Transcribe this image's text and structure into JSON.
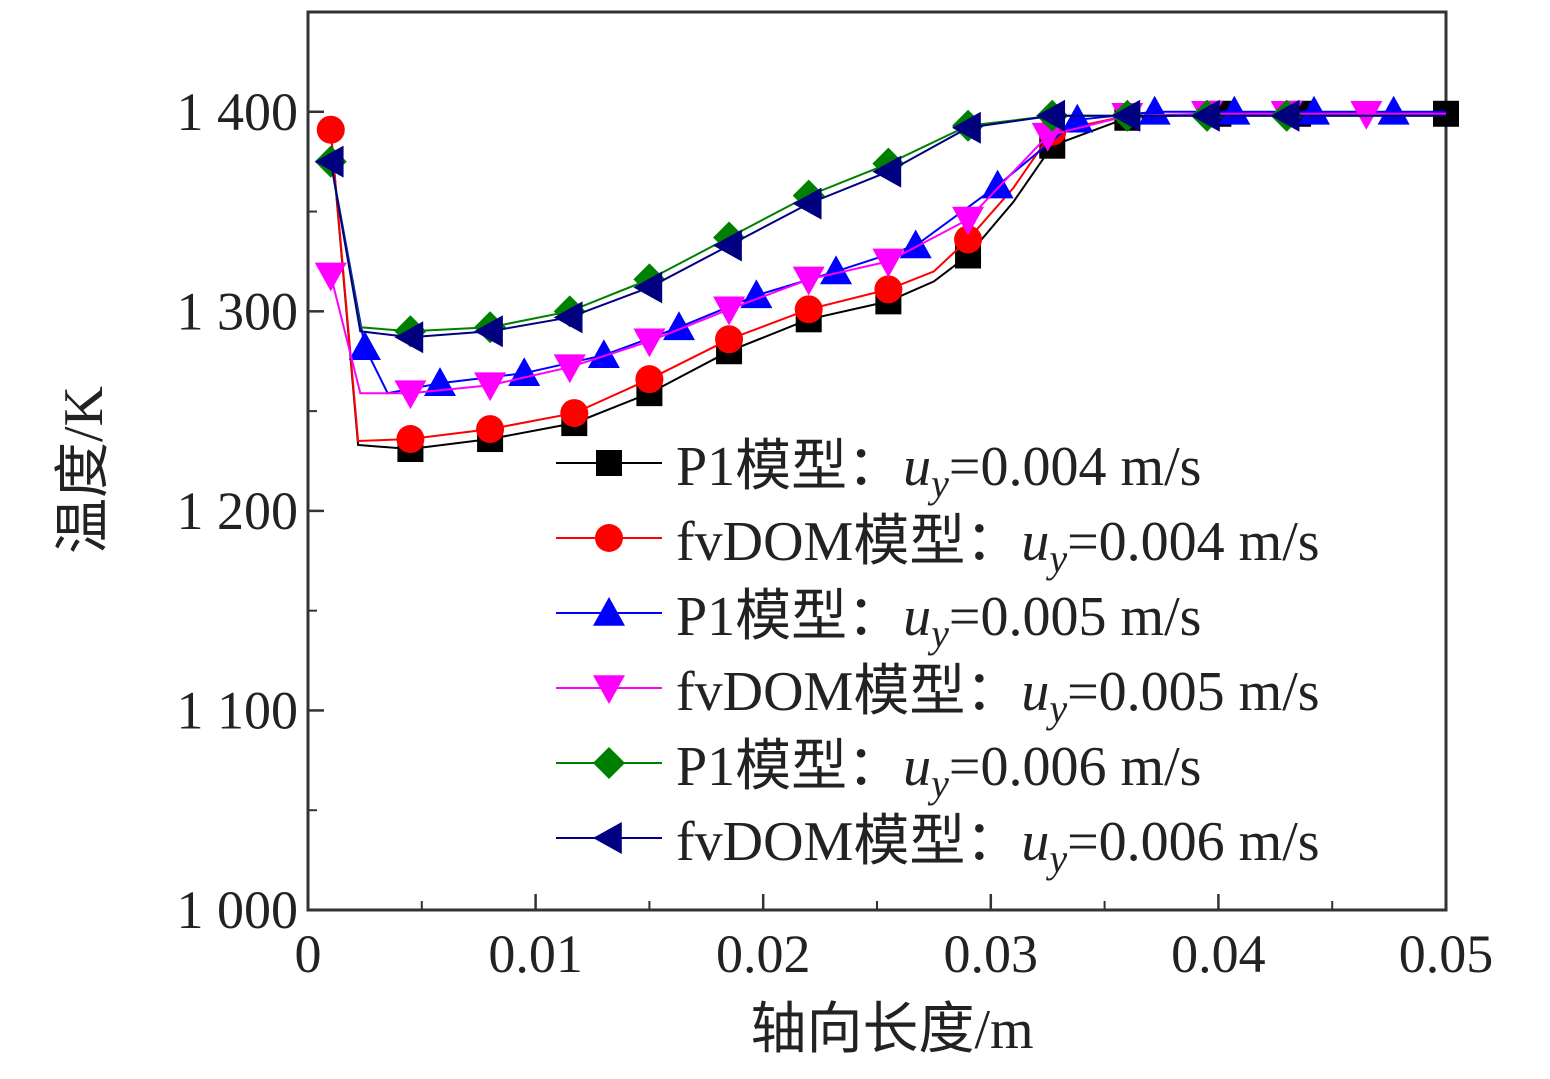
{
  "chart_data": {
    "type": "line",
    "xlabel": "轴向长度/m",
    "ylabel": "温度/K",
    "xlim": [
      0,
      0.05
    ],
    "ylim": [
      1000,
      1450
    ],
    "x_ticks": [
      0,
      0.01,
      0.02,
      0.03,
      0.04,
      0.05
    ],
    "x_tick_labels": [
      "0",
      "0.01",
      "0.02",
      "0.03",
      "0.04",
      "0.05"
    ],
    "y_ticks": [
      1000,
      1100,
      1200,
      1300,
      1400
    ],
    "y_tick_labels": [
      "1 000",
      "1 100",
      "1 200",
      "1 300",
      "1 400"
    ],
    "grid": false,
    "legend_position": "lower-right",
    "series": [
      {
        "name": "P1模型：uy=0.004 m/s",
        "legend_model": "P1模型",
        "legend_sep": "：",
        "legend_u": "u",
        "legend_sub": "y",
        "legend_value": "=0.004 m/s",
        "color": "#000000",
        "marker": "square",
        "line_x": [
          0.001,
          0.0022,
          0.0045,
          0.008,
          0.0117,
          0.015,
          0.0185,
          0.022,
          0.0255,
          0.0275,
          0.029,
          0.031,
          0.0327,
          0.036,
          0.04,
          0.0435,
          0.05
        ],
        "line_y": [
          1390,
          1233,
          1231,
          1236,
          1244,
          1259,
          1280,
          1296,
          1305,
          1315,
          1328,
          1355,
          1383,
          1397,
          1399,
          1399,
          1399
        ],
        "marker_x": [
          0.0045,
          0.008,
          0.0117,
          0.015,
          0.0185,
          0.022,
          0.0255,
          0.029,
          0.0327,
          0.036,
          0.04,
          0.0435,
          0.05
        ],
        "marker_y": [
          1231,
          1236,
          1244,
          1259,
          1280,
          1296,
          1305,
          1328,
          1383,
          1397,
          1399,
          1399,
          1399
        ]
      },
      {
        "name": "fvDOM模型：uy=0.004 m/s",
        "legend_model": "fvDOM模型",
        "legend_sep": "：",
        "legend_u": "u",
        "legend_sub": "y",
        "legend_value": "=0.004 m/s",
        "color": "#ff0000",
        "marker": "circle",
        "line_x": [
          0.001,
          0.0022,
          0.0045,
          0.008,
          0.0117,
          0.015,
          0.0185,
          0.022,
          0.0255,
          0.0275,
          0.029,
          0.031,
          0.0327,
          0.036,
          0.04,
          0.0435,
          0.05
        ],
        "line_y": [
          1391,
          1235,
          1236,
          1241,
          1249,
          1266,
          1286,
          1301,
          1311,
          1320,
          1336,
          1362,
          1390,
          1398,
          1399,
          1399,
          1399
        ],
        "marker_x": [
          0.001,
          0.0045,
          0.008,
          0.0117,
          0.015,
          0.0185,
          0.022,
          0.0255,
          0.029,
          0.0327
        ],
        "marker_y": [
          1391,
          1236,
          1241,
          1249,
          1266,
          1286,
          1301,
          1311,
          1336,
          1390
        ]
      },
      {
        "name": "P1模型：uy=0.005 m/s",
        "legend_model": "P1模型",
        "legend_sep": "：",
        "legend_u": "u",
        "legend_sub": "y",
        "legend_value": "=0.005 m/s",
        "color": "#0000ff",
        "marker": "triangle-up",
        "line_x": [
          0.001,
          0.0025,
          0.0035,
          0.0058,
          0.0095,
          0.013,
          0.0163,
          0.0197,
          0.0232,
          0.0267,
          0.0303,
          0.0338,
          0.0372,
          0.0407,
          0.0442,
          0.0477,
          0.05
        ],
        "line_y": [
          1375,
          1282,
          1259,
          1264,
          1269,
          1278,
          1292,
          1308,
          1320,
          1333,
          1363,
          1396,
          1400,
          1400,
          1400,
          1400,
          1400
        ],
        "marker_x": [
          0.0025,
          0.0058,
          0.0095,
          0.013,
          0.0163,
          0.0197,
          0.0232,
          0.0267,
          0.0303,
          0.0338,
          0.0372,
          0.0407,
          0.0442,
          0.0477
        ],
        "marker_y": [
          1282,
          1264,
          1269,
          1278,
          1292,
          1308,
          1320,
          1333,
          1363,
          1396,
          1400,
          1400,
          1400,
          1400
        ]
      },
      {
        "name": "fvDOM模型：uy=0.005 m/s",
        "legend_model": "fvDOM模型",
        "legend_sep": "：",
        "legend_u": "u",
        "legend_sub": "y",
        "legend_value": "=0.005 m/s",
        "color": "#ff00ff",
        "marker": "triangle-down",
        "line_x": [
          0.001,
          0.0023,
          0.0045,
          0.008,
          0.0115,
          0.015,
          0.0185,
          0.022,
          0.0255,
          0.029,
          0.0325,
          0.036,
          0.0395,
          0.043,
          0.0465,
          0.05
        ],
        "line_y": [
          1318,
          1259,
          1259,
          1263,
          1272,
          1285,
          1301,
          1316,
          1325,
          1346,
          1388,
          1398,
          1399,
          1399,
          1399,
          1399
        ],
        "marker_x": [
          0.001,
          0.0045,
          0.008,
          0.0115,
          0.015,
          0.0185,
          0.022,
          0.0255,
          0.029,
          0.0325,
          0.036,
          0.0395,
          0.043,
          0.0465
        ],
        "marker_y": [
          1318,
          1259,
          1263,
          1272,
          1285,
          1301,
          1316,
          1325,
          1346,
          1388,
          1398,
          1399,
          1399,
          1399
        ]
      },
      {
        "name": "P1模型：uy=0.006 m/s",
        "legend_model": "P1模型",
        "legend_sep": "：",
        "legend_u": "u",
        "legend_sub": "y",
        "legend_value": "=0.006 m/s",
        "color": "#008000",
        "marker": "diamond",
        "line_x": [
          0.001,
          0.0023,
          0.0045,
          0.008,
          0.0115,
          0.015,
          0.0185,
          0.022,
          0.0255,
          0.029,
          0.0327,
          0.036,
          0.0395,
          0.043,
          0.0465,
          0.05
        ],
        "line_y": [
          1375,
          1292,
          1290,
          1292,
          1300,
          1316,
          1337,
          1358,
          1374,
          1393,
          1398,
          1398,
          1398,
          1398,
          1398,
          1398
        ],
        "marker_x": [
          0.001,
          0.0045,
          0.008,
          0.0115,
          0.015,
          0.0185,
          0.022,
          0.0255,
          0.029,
          0.0327,
          0.036,
          0.0395,
          0.043
        ],
        "marker_y": [
          1375,
          1290,
          1292,
          1300,
          1316,
          1337,
          1358,
          1374,
          1393,
          1398,
          1398,
          1398,
          1398
        ]
      },
      {
        "name": "fvDOM模型：uy=0.006 m/s",
        "legend_model": "fvDOM模型",
        "legend_sep": "：",
        "legend_u": "u",
        "legend_sub": "y",
        "legend_value": "=0.006 m/s",
        "color": "#000080",
        "marker": "triangle-left",
        "line_x": [
          0.001,
          0.0023,
          0.0045,
          0.008,
          0.0115,
          0.015,
          0.0185,
          0.022,
          0.0255,
          0.029,
          0.0327,
          0.036,
          0.0395,
          0.043,
          0.0465,
          0.05
        ],
        "line_y": [
          1375,
          1290,
          1287,
          1290,
          1297,
          1312,
          1333,
          1354,
          1370,
          1392,
          1398,
          1398,
          1398,
          1398,
          1398,
          1398
        ],
        "marker_x": [
          0.001,
          0.0045,
          0.008,
          0.0115,
          0.015,
          0.0185,
          0.022,
          0.0255,
          0.029,
          0.0327,
          0.036,
          0.0395,
          0.043
        ],
        "marker_y": [
          1375,
          1287,
          1290,
          1297,
          1312,
          1333,
          1354,
          1370,
          1392,
          1398,
          1398,
          1398,
          1398
        ]
      }
    ]
  }
}
